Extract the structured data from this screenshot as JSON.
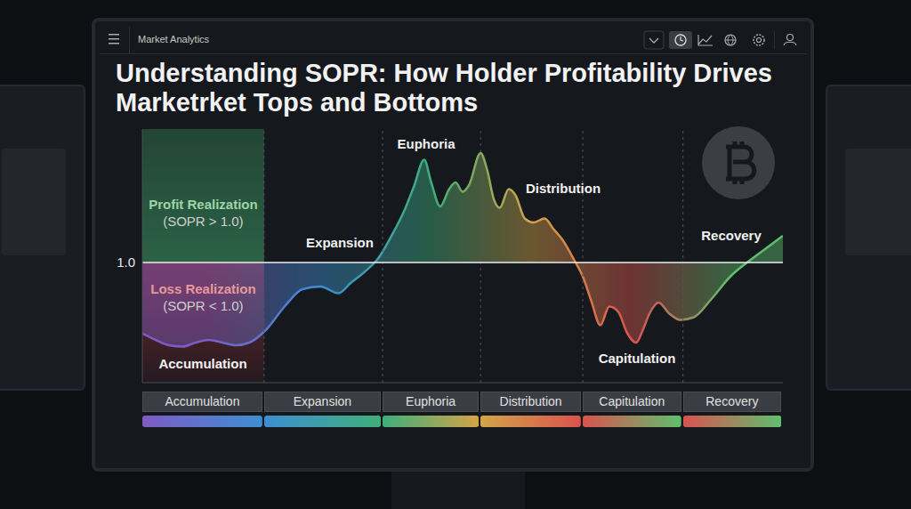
{
  "chart_data": {
    "type": "area",
    "header": "Market Analytics",
    "title": "Understanding SOPR: How Holder Profitability Drives Marketrket Tops and Bottoms",
    "x": [
      0,
      2.1,
      4.2,
      6.3,
      8.3,
      10.4,
      12.5,
      14.6,
      16.7,
      19.4,
      22.2,
      25,
      27.8,
      30.6,
      32.6,
      34.7,
      36.8,
      38.9,
      41,
      42.4,
      44,
      45.1,
      46.5,
      47.9,
      48.9,
      50,
      51,
      52.8,
      53.8,
      54.9,
      55.8,
      57.2,
      58.3,
      59.7,
      61.1,
      62.8,
      64.2,
      65.6,
      67.4,
      68.8,
      70.1,
      71.5,
      72.9,
      74.3,
      75.7,
      77.1,
      78.1,
      79.2,
      80.6,
      82.2,
      84,
      86.1,
      88.9,
      91.7,
      94.4,
      97.2,
      100
    ],
    "values": [
      0.947,
      0.942,
      0.938,
      0.937,
      0.94,
      0.942,
      0.94,
      0.938,
      0.94,
      0.95,
      0.967,
      0.98,
      0.982,
      0.977,
      0.985,
      0.993,
      1.003,
      1.02,
      1.04,
      1.057,
      1.077,
      1.06,
      1.042,
      1.055,
      1.06,
      1.053,
      1.058,
      1.082,
      1.07,
      1.047,
      1.041,
      1.055,
      1.05,
      1.033,
      1.03,
      1.033,
      1.025,
      1.017,
      1.002,
      0.989,
      0.971,
      0.953,
      0.967,
      0.963,
      0.947,
      0.94,
      0.949,
      0.962,
      0.97,
      0.962,
      0.957,
      0.959,
      0.973,
      0.989,
      1.0,
      1.01,
      1.02
    ],
    "xlim": [
      0,
      100
    ],
    "ylim": [
      0.91,
      1.1
    ],
    "yticks": [
      {
        "value": 1.0,
        "label": "1.0"
      }
    ],
    "baseline": 1.0,
    "tick_labels": "y",
    "zones": [
      {
        "label": "Profit Realization",
        "condition": "(SOPR > 1.0)"
      },
      {
        "label": "Loss Realization",
        "condition": "(SOPR < 1.0)"
      }
    ],
    "phases": [
      {
        "name": "Accumulation",
        "start": 0,
        "end": 19,
        "color": "#7e5bc4"
      },
      {
        "name": "Expansion",
        "start": 19,
        "end": 37.5,
        "color": "#3d8fd1"
      },
      {
        "name": "Euphoria",
        "start": 37.5,
        "end": 52.8,
        "color": "#3fae7a"
      },
      {
        "name": "Distribution",
        "start": 52.8,
        "end": 68.75,
        "color": "#d3a447"
      },
      {
        "name": "Capitulation",
        "start": 68.75,
        "end": 84.4,
        "color": "#d9534f"
      },
      {
        "name": "Recovery",
        "start": 84.4,
        "end": 100,
        "color": "#5fbf6f"
      }
    ]
  }
}
